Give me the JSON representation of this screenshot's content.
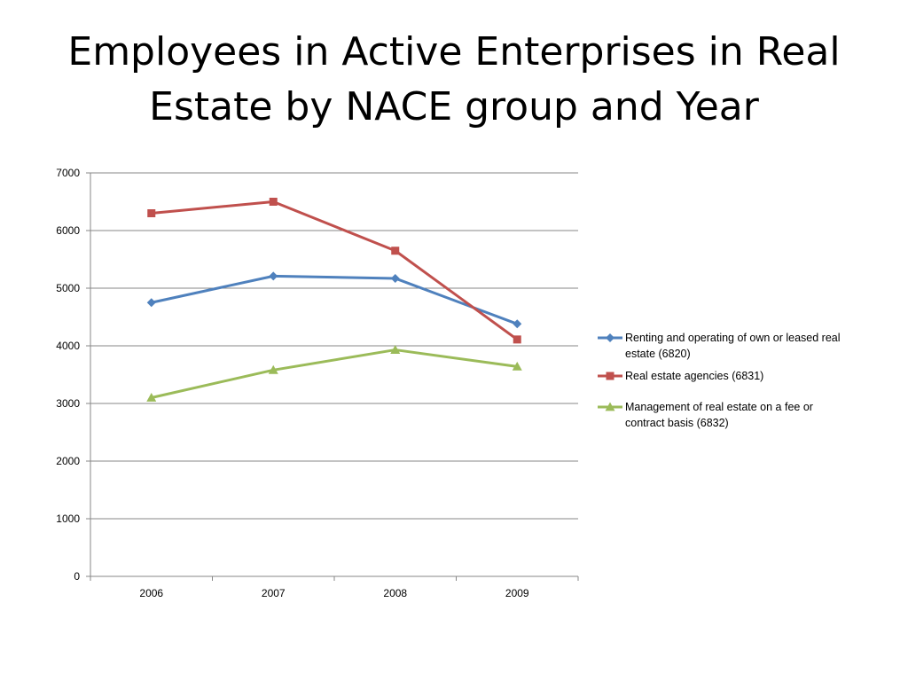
{
  "slide": {
    "title_line1": "Employees in Active Enterprises in Real",
    "title_line2": "Estate by NACE group and Year"
  },
  "chart_data": {
    "type": "line",
    "title": "Employees in Active Enterprises in Real Estate by NACE group and Year",
    "xlabel": "",
    "ylabel": "",
    "categories": [
      "2006",
      "2007",
      "2008",
      "2009"
    ],
    "ylim": [
      0,
      7000
    ],
    "yticks": [
      0,
      1000,
      2000,
      3000,
      4000,
      5000,
      6000,
      7000
    ],
    "grid": true,
    "legend_position": "right",
    "series": [
      {
        "name": "Renting and operating of own or leased real estate (6820)",
        "name_lines": [
          "Renting and operating of own or leased real",
          "estate (6820)"
        ],
        "values": [
          4750,
          5210,
          5170,
          4380
        ],
        "color": "#4F81BD",
        "marker": "diamond"
      },
      {
        "name": "Real estate agencies (6831)",
        "name_lines": [
          "Real estate agencies (6831)"
        ],
        "values": [
          6300,
          6500,
          5650,
          4110
        ],
        "color": "#C0504D",
        "marker": "square"
      },
      {
        "name": "Management of real estate on a fee or contract basis (6832)",
        "name_lines": [
          "Management of real estate on a fee or",
          "contract basis (6832)"
        ],
        "values": [
          3100,
          3580,
          3930,
          3640
        ],
        "color": "#9BBB59",
        "marker": "triangle"
      }
    ]
  }
}
